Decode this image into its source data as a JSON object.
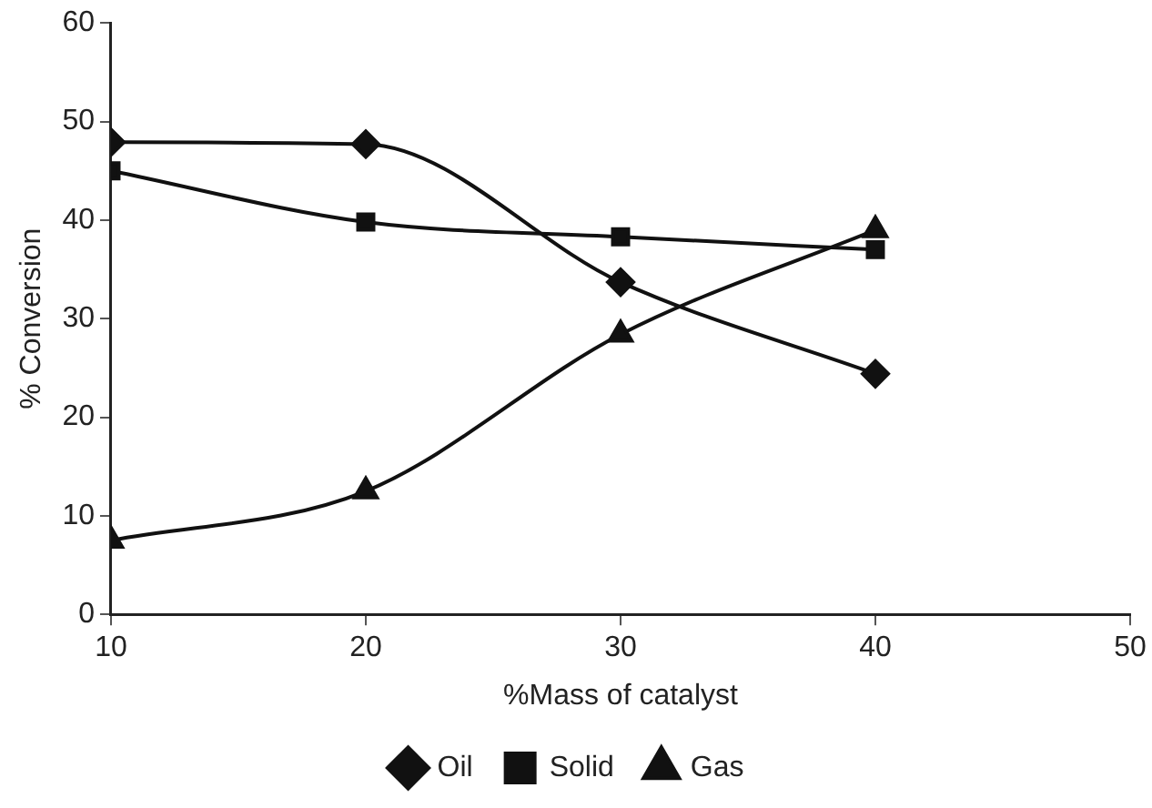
{
  "chart_data": {
    "type": "line",
    "xlabel": "%Mass of catalyst",
    "ylabel": "% Conversion",
    "x": [
      10,
      20,
      30,
      40
    ],
    "series": [
      {
        "name": "Oil",
        "color": "#111111",
        "marker": "diamond",
        "values": [
          47.9,
          47.7,
          33.7,
          24.4
        ]
      },
      {
        "name": "Solid",
        "color": "#111111",
        "marker": "square",
        "values": [
          45.0,
          39.8,
          38.3,
          37.0
        ]
      },
      {
        "name": "Gas",
        "color": "#111111",
        "marker": "triangle",
        "values": [
          7.5,
          12.5,
          28.4,
          39.0
        ]
      }
    ],
    "xlim": [
      10,
      50
    ],
    "xticks": [
      10,
      20,
      30,
      40,
      50
    ],
    "ylim": [
      0,
      60
    ],
    "yticks": [
      0,
      10,
      20,
      30,
      40,
      50,
      60
    ],
    "grid": false,
    "legend": "bottom",
    "line_style": "solid"
  }
}
